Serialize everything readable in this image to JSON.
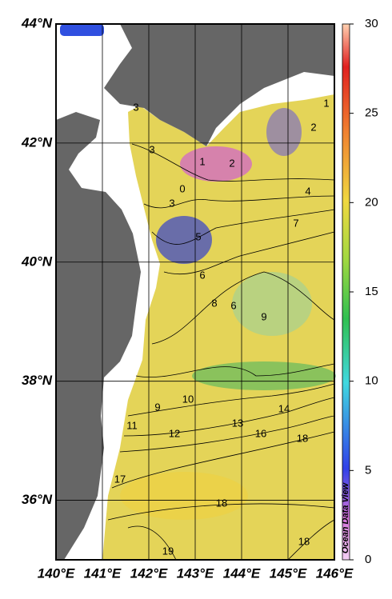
{
  "map": {
    "lat_ticks": [
      {
        "value": 44,
        "label": "44°N"
      },
      {
        "value": 42,
        "label": "42°N"
      },
      {
        "value": 40,
        "label": "40°N"
      },
      {
        "value": 38,
        "label": "38°N"
      },
      {
        "value": 36,
        "label": "36°N"
      }
    ],
    "lon_ticks": [
      {
        "value": 140,
        "label": "140°E"
      },
      {
        "value": 141,
        "label": "141°E"
      },
      {
        "value": 142,
        "label": "142°E"
      },
      {
        "value": 143,
        "label": "143°E"
      },
      {
        "value": 144,
        "label": "144°E"
      },
      {
        "value": 145,
        "label": "145°E"
      },
      {
        "value": 146,
        "label": "146°E"
      }
    ],
    "lonlim": [
      140,
      146
    ],
    "latlim": [
      35,
      44
    ],
    "colorbar": {
      "lim": [
        0,
        30
      ],
      "ticks": [
        0,
        5,
        10,
        15,
        20,
        25,
        30
      ]
    },
    "contour_labels": [
      3,
      3,
      1,
      2,
      0,
      3,
      5,
      4,
      7,
      6,
      8,
      6,
      9,
      1,
      2,
      9,
      10,
      11,
      12,
      13,
      14,
      16,
      18,
      17,
      18,
      19,
      18
    ],
    "credit": "Ocean Data View"
  }
}
